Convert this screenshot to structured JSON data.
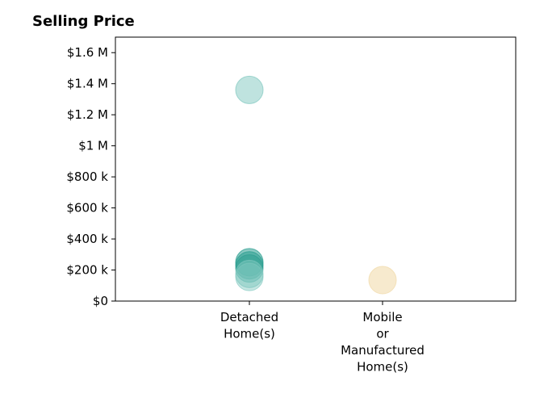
{
  "chart_data": {
    "type": "scatter",
    "title": "Selling Price",
    "xlabel": "",
    "ylabel": "",
    "categories": [
      "Detached Home(s)",
      "Mobile or Manufactured Home(s)"
    ],
    "category_labels": [
      [
        "Detached",
        "Home(s)"
      ],
      [
        "Mobile",
        "or",
        "Manufactured",
        "Home(s)"
      ]
    ],
    "ylim": [
      0,
      1700000
    ],
    "yticks": [
      0,
      200000,
      400000,
      600000,
      800000,
      1000000,
      1200000,
      1400000,
      1600000
    ],
    "ytick_labels": [
      "$0",
      "$200 k",
      "$400 k",
      "$600 k",
      "$800 k",
      "$1 M",
      "$1.2 M",
      "$1.4 M",
      "$1.6 M"
    ],
    "grid": false,
    "legend": "none",
    "points": [
      {
        "category": "Detached Home(s)",
        "y": 1360000,
        "color": "#7fc8bf",
        "opacity": 0.5
      },
      {
        "category": "Detached Home(s)",
        "y": 250000,
        "color": "#2a9d8f",
        "opacity": 0.55
      },
      {
        "category": "Detached Home(s)",
        "y": 230000,
        "color": "#2a9d8f",
        "opacity": 0.55
      },
      {
        "category": "Detached Home(s)",
        "y": 210000,
        "color": "#2a9d8f",
        "opacity": 0.45
      },
      {
        "category": "Detached Home(s)",
        "y": 175000,
        "color": "#7fc8bf",
        "opacity": 0.5
      },
      {
        "category": "Detached Home(s)",
        "y": 155000,
        "color": "#7fc8bf",
        "opacity": 0.45
      },
      {
        "category": "Mobile or Manufactured Home(s)",
        "y": 135000,
        "color": "#f1dcae",
        "opacity": 0.6
      }
    ]
  }
}
